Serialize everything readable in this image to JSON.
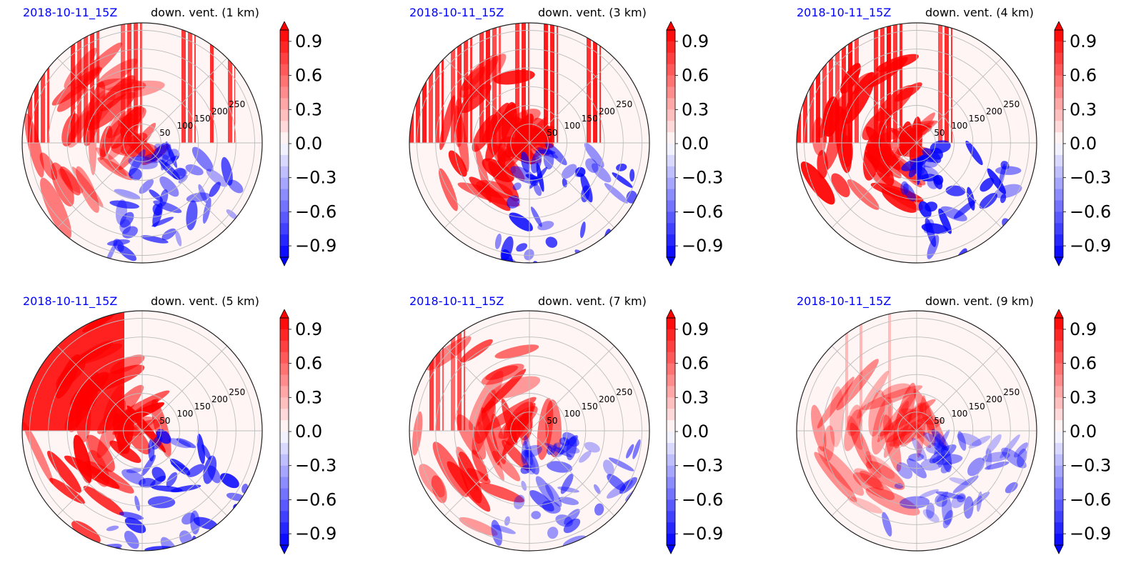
{
  "figure": {
    "date_color": "#0000ff",
    "color_high": "#ff0000",
    "color_low": "#0000ff"
  },
  "chart_data": [
    {
      "type": "heatmap",
      "projection": "polar",
      "date_label": "2018-10-11_15Z",
      "field_label": "down. vent. (1 km)",
      "radial_ticks": [
        "50",
        "100",
        "150",
        "200",
        "250"
      ],
      "rlim": [
        0,
        270
      ],
      "grid": true,
      "colorbar": {
        "ticks": [
          "0.9",
          "0.6",
          "0.3",
          "0.0",
          "−0.3",
          "−0.6",
          "−0.9"
        ],
        "vmin": -1.0,
        "vmax": 1.0,
        "extend": "both"
      },
      "regions": [
        {
          "sign": "positive",
          "sector": "west (stripes north)",
          "intensity": 0.8
        },
        {
          "sign": "negative",
          "sector": "southeast",
          "intensity": 0.7
        }
      ]
    },
    {
      "type": "heatmap",
      "projection": "polar",
      "date_label": "2018-10-11_15Z",
      "field_label": "down. vent. (3 km)",
      "radial_ticks": [
        "50",
        "100",
        "150",
        "200",
        "250"
      ],
      "rlim": [
        0,
        270
      ],
      "grid": true,
      "colorbar": {
        "ticks": [
          "0.9",
          "0.6",
          "0.3",
          "0.0",
          "−0.3",
          "−0.6",
          "−0.9"
        ],
        "vmin": -1.0,
        "vmax": 1.0,
        "extend": "both"
      },
      "regions": [
        {
          "sign": "positive",
          "sector": "west and north",
          "intensity": 0.9
        },
        {
          "sign": "negative",
          "sector": "southeast",
          "intensity": 0.8
        }
      ]
    },
    {
      "type": "heatmap",
      "projection": "polar",
      "date_label": "2018-10-11_15Z",
      "field_label": "down. vent. (4 km)",
      "radial_ticks": [
        "50",
        "100",
        "150",
        "200",
        "250"
      ],
      "rlim": [
        0,
        270
      ],
      "grid": true,
      "colorbar": {
        "ticks": [
          "0.9",
          "0.6",
          "0.3",
          "0.0",
          "−0.3",
          "−0.6",
          "−0.9"
        ],
        "vmin": -1.0,
        "vmax": 1.0,
        "extend": "both"
      },
      "regions": [
        {
          "sign": "positive",
          "sector": "west and northwest",
          "intensity": 0.95
        },
        {
          "sign": "negative",
          "sector": "southeast",
          "intensity": 0.8
        }
      ]
    },
    {
      "type": "heatmap",
      "projection": "polar",
      "date_label": "2018-10-11_15Z",
      "field_label": "down. vent. (5 km)",
      "radial_ticks": [
        "50",
        "100",
        "150",
        "200",
        "250"
      ],
      "rlim": [
        0,
        270
      ],
      "grid": true,
      "colorbar": {
        "ticks": [
          "0.9",
          "0.6",
          "0.3",
          "0.0",
          "−0.3",
          "−0.6",
          "−0.9"
        ],
        "vmin": -1.0,
        "vmax": 1.0,
        "extend": "both"
      },
      "regions": [
        {
          "sign": "positive",
          "sector": "west and northwest",
          "intensity": 0.95
        },
        {
          "sign": "negative",
          "sector": "southeast",
          "intensity": 0.8
        }
      ]
    },
    {
      "type": "heatmap",
      "projection": "polar",
      "date_label": "2018-10-11_15Z",
      "field_label": "down. vent. (7 km)",
      "radial_ticks": [
        "50",
        "100",
        "150",
        "200",
        "250"
      ],
      "rlim": [
        0,
        270
      ],
      "grid": true,
      "colorbar": {
        "ticks": [
          "0.9",
          "0.6",
          "0.3",
          "0.0",
          "−0.3",
          "−0.6",
          "−0.9"
        ],
        "vmin": -1.0,
        "vmax": 1.0,
        "extend": "both"
      },
      "regions": [
        {
          "sign": "positive",
          "sector": "west",
          "intensity": 0.8
        },
        {
          "sign": "negative",
          "sector": "southeast",
          "intensity": 0.6
        }
      ]
    },
    {
      "type": "heatmap",
      "projection": "polar",
      "date_label": "2018-10-11_15Z",
      "field_label": "down. vent. (9 km)",
      "radial_ticks": [
        "50",
        "100",
        "150",
        "200",
        "250"
      ],
      "rlim": [
        0,
        270
      ],
      "grid": true,
      "colorbar": {
        "ticks": [
          "0.9",
          "0.6",
          "0.3",
          "0.0",
          "−0.3",
          "−0.6",
          "−0.9"
        ],
        "vmin": -1.0,
        "vmax": 1.0,
        "extend": "both"
      },
      "regions": [
        {
          "sign": "positive",
          "sector": "southwest",
          "intensity": 0.45
        },
        {
          "sign": "negative",
          "sector": "southeast",
          "intensity": 0.55
        }
      ]
    }
  ]
}
